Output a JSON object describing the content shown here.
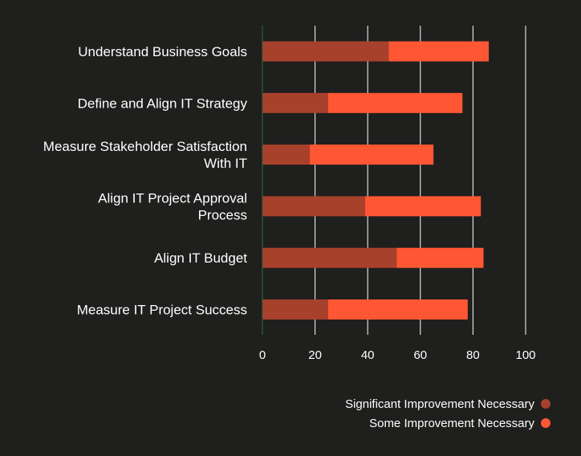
{
  "chart_data": {
    "type": "bar",
    "orientation": "horizontal",
    "stacked": true,
    "categories": [
      "Understand Business Goals",
      "Define and Align IT Strategy",
      "Measure Stakeholder Satisfaction With IT",
      "Align IT Project Approval Process",
      "Align IT Budget",
      "Measure IT Project Success"
    ],
    "series": [
      {
        "name": "Significant Improvement Necessary",
        "color": "#a8412b",
        "values": [
          48,
          25,
          18,
          39,
          51,
          25
        ]
      },
      {
        "name": "Some Improvement Necessary",
        "color": "#ff5733",
        "values": [
          38,
          51,
          47,
          44,
          33,
          53
        ]
      }
    ],
    "xlim": [
      0,
      100
    ],
    "xticks": [
      0,
      20,
      40,
      60,
      80,
      100
    ],
    "grid": true,
    "legend_position": "bottom-right",
    "title": "",
    "xlabel": "",
    "ylabel": ""
  }
}
